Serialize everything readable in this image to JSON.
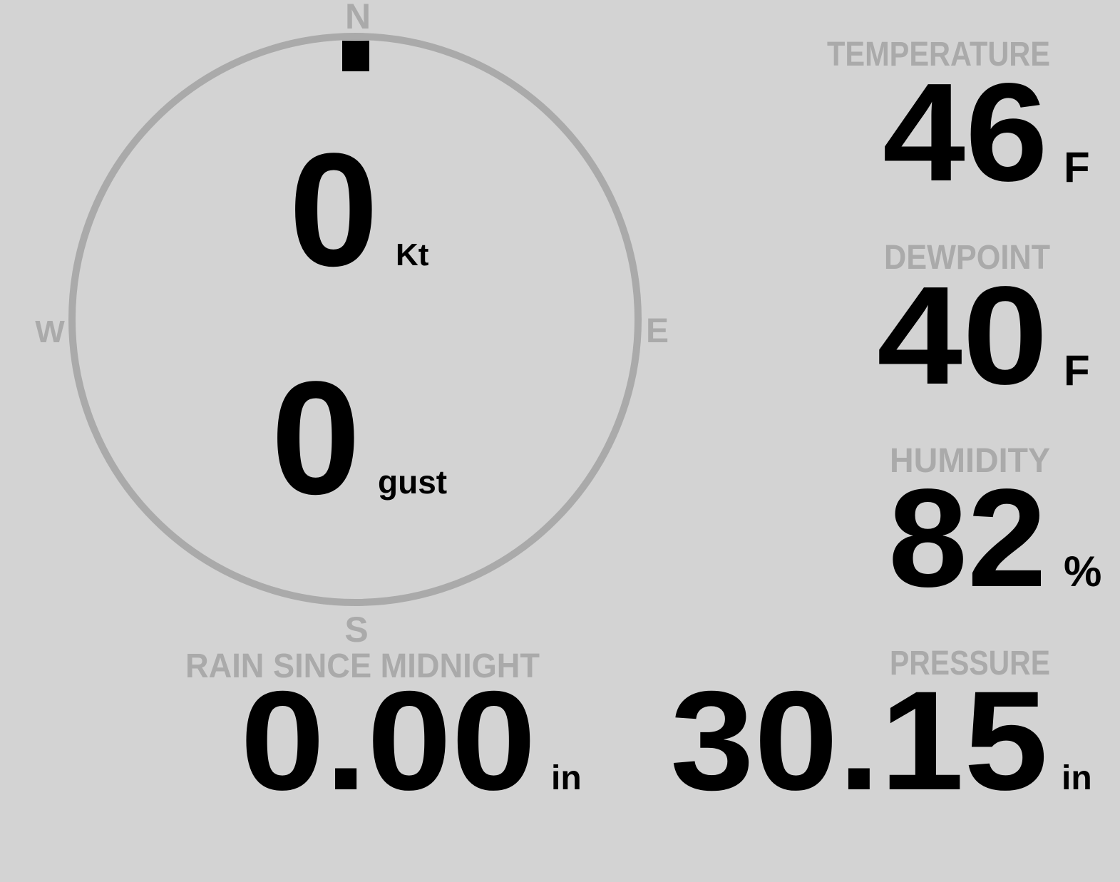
{
  "colors": {
    "background": "#d3d3d3",
    "label": "#aaaaaa",
    "value": "#000000",
    "indicator": "#000000"
  },
  "compass": {
    "north": "N",
    "south": "S",
    "east": "E",
    "west": "W",
    "wind_direction_deg": 0,
    "wind_speed": "0",
    "wind_speed_unit": "Kt",
    "gust": "0",
    "gust_unit": "gust"
  },
  "temperature": {
    "label": "TEMPERATURE",
    "value": "46",
    "unit": "F"
  },
  "dewpoint": {
    "label": "DEWPOINT",
    "value": "40",
    "unit": "F"
  },
  "humidity": {
    "label": "HUMIDITY",
    "value": "82",
    "unit": "%"
  },
  "pressure": {
    "label": "PRESSURE",
    "value": "30.15",
    "unit": "in"
  },
  "rain": {
    "label": "RAIN SINCE MIDNIGHT",
    "value": "0.00",
    "unit": "in"
  }
}
